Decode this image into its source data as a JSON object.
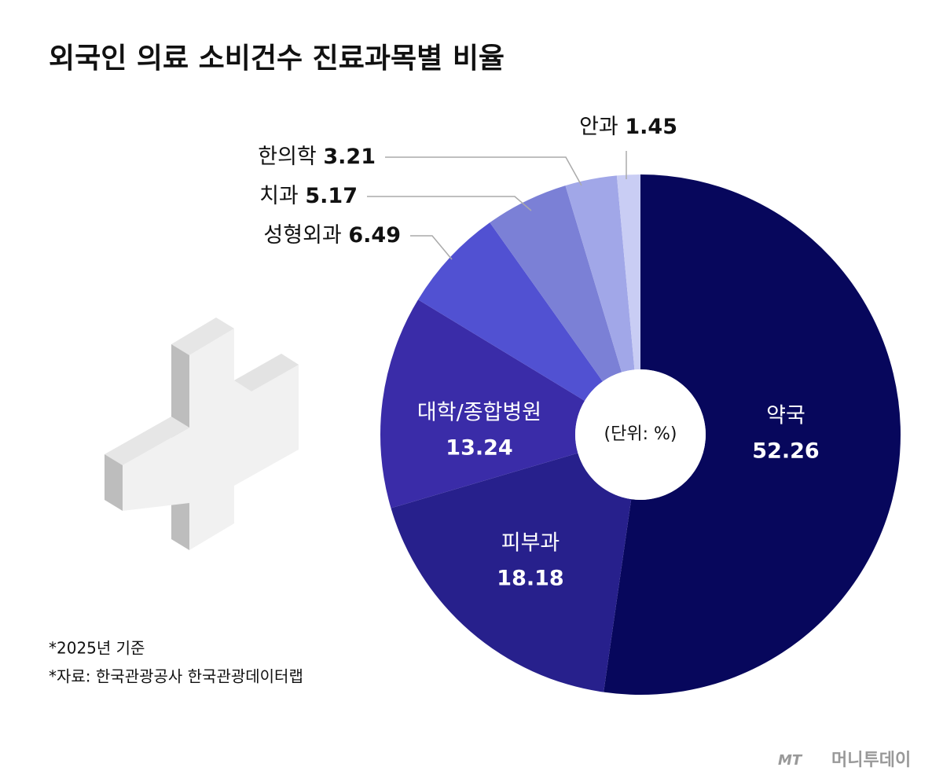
{
  "chart_data": {
    "type": "pie",
    "donut": true,
    "title": "외국인 의료 소비건수 진료과목별 비율",
    "center_label": "(단위: %)",
    "categories": [
      "약국",
      "피부과",
      "대학/종합병원",
      "성형외과",
      "치과",
      "한의학",
      "안과"
    ],
    "values": [
      52.26,
      18.18,
      13.24,
      6.49,
      5.17,
      3.21,
      1.45
    ],
    "colors": [
      "#07075c",
      "#27208c",
      "#3a2ca8",
      "#5151d2",
      "#7b80d6",
      "#a1a7e8",
      "#c9cdf4"
    ],
    "notes": [
      "*2025년 기준",
      "*자료: 한국관광공사 한국관광데이터랩"
    ],
    "logo": {
      "mark": "MT",
      "name": "머니투데이"
    }
  }
}
